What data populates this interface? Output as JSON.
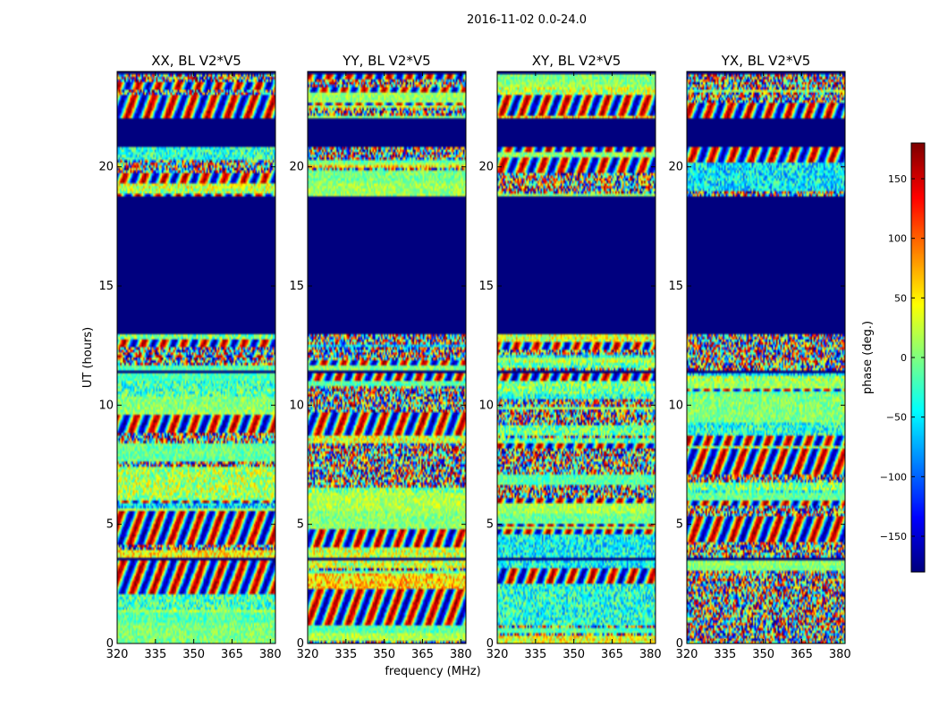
{
  "chart_data": {
    "type": "heatmap",
    "suptitle": "2016-11-02 0.0-24.0",
    "xlabel": "frequency (MHz)",
    "ylabel": "UT (hours)",
    "xlim": [
      320,
      382
    ],
    "ylim": [
      0,
      24
    ],
    "xticks": [
      "320",
      "335",
      "350",
      "365",
      "380"
    ],
    "yticks": [
      "0",
      "5",
      "10",
      "15",
      "20"
    ],
    "colorbar": {
      "label": "phase (deg.)",
      "range": [
        -180,
        180
      ],
      "ticks": [
        "150",
        "100",
        "50",
        "0",
        "−50",
        "−100",
        "−150"
      ],
      "colormap": "jet",
      "colors": [
        "#00007f",
        "#0000ff",
        "#007fff",
        "#00ffff",
        "#7fff7f",
        "#ffff00",
        "#ff7f00",
        "#ff0000",
        "#7f0000"
      ]
    },
    "panels": [
      {
        "title": "XX, BL V2*V5",
        "pol": "XX"
      },
      {
        "title": "YY, BL V2*V5",
        "pol": "YY"
      },
      {
        "title": "XY, BL V2*V5",
        "pol": "XY"
      },
      {
        "title": "YX, BL V2*V5",
        "pol": "YX"
      }
    ],
    "flagged_ut_ranges": [
      [
        0.0,
        0.05
      ],
      [
        3.45,
        3.6
      ],
      [
        11.3,
        11.5
      ],
      [
        13.0,
        18.8
      ],
      [
        20.8,
        22.0
      ],
      [
        23.9,
        24.0
      ]
    ],
    "flag_value": -180
  }
}
